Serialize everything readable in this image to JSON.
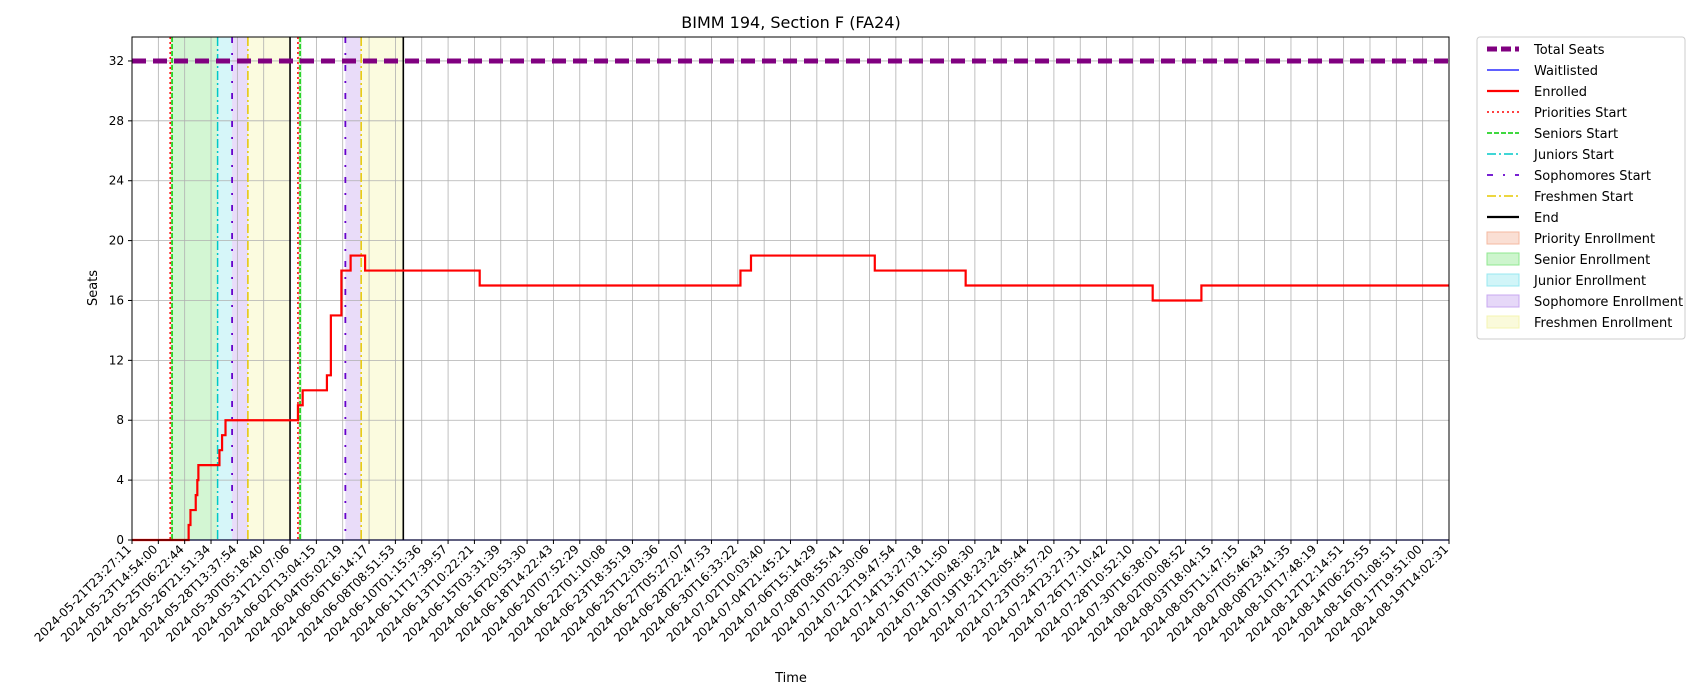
{
  "chart_data": {
    "type": "line",
    "title": "BIMM 194, Section F (FA24)",
    "xlabel": "Time",
    "ylabel": "Seats",
    "ylim": [
      0,
      33.6
    ],
    "yticks": [
      0,
      4,
      8,
      12,
      16,
      20,
      24,
      28,
      32
    ],
    "grid": true,
    "legend_position": "outside-right",
    "x_tick_labels": [
      "2024-05-21T23:27:11",
      "2024-05-23T14:54:00",
      "2024-05-25T06:22:44",
      "2024-05-26T21:51:34",
      "2024-05-28T13:37:54",
      "2024-05-30T05:18:40",
      "2024-05-31T21:07:06",
      "2024-06-02T13:04:15",
      "2024-06-04T05:02:19",
      "2024-06-06T16:14:17",
      "2024-06-08T08:51:53",
      "2024-06-10T01:15:36",
      "2024-06-11T17:39:57",
      "2024-06-13T10:22:21",
      "2024-06-15T03:31:39",
      "2024-06-16T20:53:30",
      "2024-06-18T14:22:43",
      "2024-06-20T07:52:29",
      "2024-06-22T01:10:08",
      "2024-06-23T18:35:19",
      "2024-06-25T12:03:36",
      "2024-06-27T05:27:07",
      "2024-06-28T22:47:53",
      "2024-06-30T16:33:22",
      "2024-07-02T10:03:40",
      "2024-07-04T21:45:21",
      "2024-07-06T15:14:29",
      "2024-07-08T08:55:41",
      "2024-07-10T02:30:06",
      "2024-07-12T19:47:54",
      "2024-07-14T13:27:18",
      "2024-07-16T07:11:50",
      "2024-07-18T00:48:30",
      "2024-07-19T18:23:24",
      "2024-07-21T12:05:44",
      "2024-07-23T05:57:20",
      "2024-07-24T23:27:31",
      "2024-07-26T17:10:42",
      "2024-07-28T10:52:10",
      "2024-07-30T16:38:01",
      "2024-08-02T00:08:52",
      "2024-08-03T18:04:15",
      "2024-08-05T11:47:15",
      "2024-08-07T05:46:43",
      "2024-08-08T23:41:35",
      "2024-08-10T17:48:19",
      "2024-08-12T12:14:51",
      "2024-08-14T06:25:55",
      "2024-08-16T01:08:51",
      "2024-08-17T19:51:00",
      "2024-08-19T14:02:31"
    ],
    "series": [
      {
        "name": "Total Seats",
        "color": "#800080",
        "style": "dashed-thick",
        "values": [
          [
            0,
            32
          ],
          [
            50,
            32
          ]
        ]
      },
      {
        "name": "Waitlisted",
        "color": "#0000ff",
        "style": "solid-thin",
        "values": [
          [
            0,
            0
          ],
          [
            50,
            0
          ]
        ]
      },
      {
        "name": "Enrolled",
        "color": "#ff0000",
        "style": "solid",
        "values": [
          [
            0,
            0
          ],
          [
            2.15,
            0
          ],
          [
            2.15,
            1
          ],
          [
            2.22,
            1
          ],
          [
            2.22,
            2
          ],
          [
            2.42,
            2
          ],
          [
            2.42,
            3
          ],
          [
            2.48,
            3
          ],
          [
            2.48,
            4
          ],
          [
            2.52,
            4
          ],
          [
            2.52,
            5
          ],
          [
            3.32,
            5
          ],
          [
            3.32,
            6
          ],
          [
            3.42,
            6
          ],
          [
            3.42,
            7
          ],
          [
            3.55,
            7
          ],
          [
            3.55,
            8
          ],
          [
            6.3,
            8
          ],
          [
            6.3,
            9
          ],
          [
            6.48,
            9
          ],
          [
            6.48,
            10
          ],
          [
            7.4,
            10
          ],
          [
            7.4,
            11
          ],
          [
            7.55,
            11
          ],
          [
            7.55,
            15
          ],
          [
            7.95,
            15
          ],
          [
            7.95,
            18
          ],
          [
            8.3,
            18
          ],
          [
            8.3,
            19
          ],
          [
            8.85,
            19
          ],
          [
            8.85,
            18
          ],
          [
            13.2,
            18
          ],
          [
            13.2,
            17
          ],
          [
            23.1,
            17
          ],
          [
            23.1,
            18
          ],
          [
            23.5,
            18
          ],
          [
            23.5,
            19
          ],
          [
            28.2,
            19
          ],
          [
            28.2,
            18
          ],
          [
            31.65,
            18
          ],
          [
            31.65,
            17
          ],
          [
            38.75,
            17
          ],
          [
            38.75,
            16
          ],
          [
            40.6,
            16
          ],
          [
            40.6,
            17
          ],
          [
            50,
            17
          ]
        ]
      }
    ],
    "vertical_lines": [
      {
        "name": "Priorities Start",
        "color": "#ff0000",
        "style": "dotted",
        "x": 1.45
      },
      {
        "name": "Seniors Start",
        "color": "#00cc00",
        "style": "dashed",
        "x": 1.52
      },
      {
        "name": "Juniors Start",
        "color": "#00c8c8",
        "style": "dashdot",
        "x": 3.25
      },
      {
        "name": "Sophomores Start",
        "color": "#6600cc",
        "style": "dashdot-sparse",
        "x": 3.8
      },
      {
        "name": "Freshmen Start",
        "color": "#e6c800",
        "style": "dashdot",
        "x": 4.4
      },
      {
        "name": "End",
        "color": "#000000",
        "style": "solid",
        "x": 6.0
      },
      {
        "name": "Priorities Start",
        "color": "#ff0000",
        "style": "dotted",
        "x": 6.3
      },
      {
        "name": "Seniors Start",
        "color": "#00cc00",
        "style": "dashed",
        "x": 6.38
      },
      {
        "name": "Sophomores Start",
        "color": "#6600cc",
        "style": "dashdot-sparse",
        "x": 8.1
      },
      {
        "name": "Freshmen Start",
        "color": "#e6c800",
        "style": "dashdot",
        "x": 8.7
      },
      {
        "name": "End",
        "color": "#000000",
        "style": "solid",
        "x": 10.3
      }
    ],
    "shaded_regions": [
      {
        "name": "Priority Enrollment",
        "color": "#f4b8a0",
        "from": 1.45,
        "to": 1.52
      },
      {
        "name": "Senior Enrollment",
        "color": "#90e890",
        "from": 1.52,
        "to": 3.25
      },
      {
        "name": "Junior Enrollment",
        "color": "#98e8f0",
        "from": 3.25,
        "to": 3.8
      },
      {
        "name": "Sophomore Enrollment",
        "color": "#c8a8f0",
        "from": 3.8,
        "to": 4.4
      },
      {
        "name": "Freshmen Enrollment",
        "color": "#f4f4b0",
        "from": 4.4,
        "to": 6.0
      },
      {
        "name": "Priority Enrollment",
        "color": "#f4b8a0",
        "from": 6.3,
        "to": 6.38
      },
      {
        "name": "Senior Enrollment",
        "color": "#90e890",
        "from": 6.38,
        "to": 6.45
      },
      {
        "name": "Sophomore Enrollment",
        "color": "#c8a8f0",
        "from": 8.1,
        "to": 8.7
      },
      {
        "name": "Freshmen Enrollment",
        "color": "#f4f4b0",
        "from": 8.7,
        "to": 10.3
      }
    ],
    "legend": [
      {
        "label": "Total Seats",
        "kind": "line",
        "color": "#800080",
        "style": "dashed-thick"
      },
      {
        "label": "Waitlisted",
        "kind": "line",
        "color": "#0000ff",
        "style": "solid-thin"
      },
      {
        "label": "Enrolled",
        "kind": "line",
        "color": "#ff0000",
        "style": "solid"
      },
      {
        "label": "Priorities Start",
        "kind": "line",
        "color": "#ff0000",
        "style": "dotted"
      },
      {
        "label": "Seniors Start",
        "kind": "line",
        "color": "#00cc00",
        "style": "dashed"
      },
      {
        "label": "Juniors Start",
        "kind": "line",
        "color": "#00c8c8",
        "style": "dashdot"
      },
      {
        "label": "Sophomores Start",
        "kind": "line",
        "color": "#6600cc",
        "style": "dashdot-sparse"
      },
      {
        "label": "Freshmen Start",
        "kind": "line",
        "color": "#e6c800",
        "style": "dashdot"
      },
      {
        "label": "End",
        "kind": "line",
        "color": "#000000",
        "style": "solid"
      },
      {
        "label": "Priority Enrollment",
        "kind": "patch",
        "color": "#f4b8a0"
      },
      {
        "label": "Senior Enrollment",
        "kind": "patch",
        "color": "#90e890"
      },
      {
        "label": "Junior Enrollment",
        "kind": "patch",
        "color": "#98e8f0"
      },
      {
        "label": "Sophomore Enrollment",
        "kind": "patch",
        "color": "#c8a8f0"
      },
      {
        "label": "Freshmen Enrollment",
        "kind": "patch",
        "color": "#f4f4b0"
      }
    ]
  }
}
